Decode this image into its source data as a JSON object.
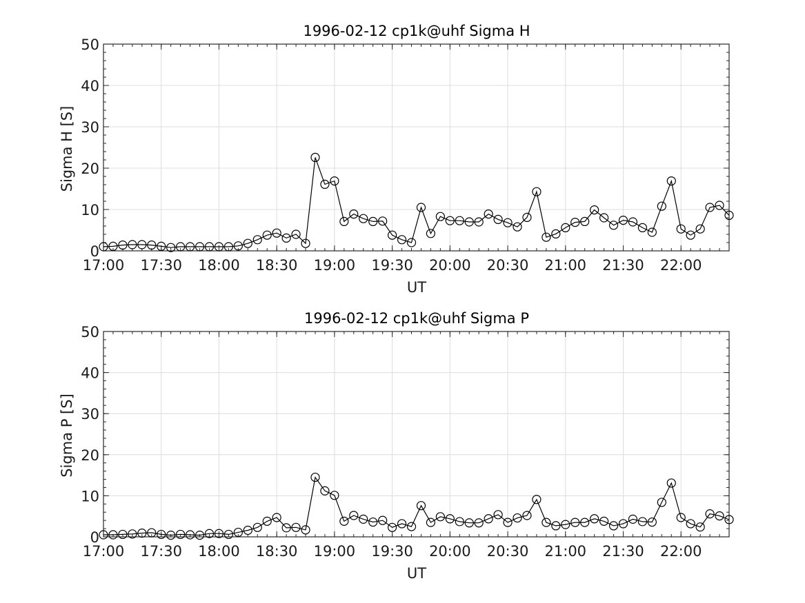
{
  "chart_data": [
    {
      "type": "line",
      "title": "1996-02-12  cp1k@uhf Sigma H",
      "xlabel": "UT",
      "ylabel": "Sigma H [S]",
      "xlim": [
        "17:00",
        "22:25"
      ],
      "ylim": [
        0,
        50
      ],
      "x_ticks": [
        "17:00",
        "17:30",
        "18:00",
        "18:30",
        "19:00",
        "19:30",
        "20:00",
        "20:30",
        "21:00",
        "21:30",
        "22:00"
      ],
      "y_ticks": [
        0,
        10,
        20,
        30,
        40,
        50
      ],
      "grid": true,
      "marker": "open-circle",
      "color": "#000000",
      "x": [
        "17:00",
        "17:05",
        "17:10",
        "17:15",
        "17:20",
        "17:25",
        "17:30",
        "17:35",
        "17:40",
        "17:45",
        "17:50",
        "17:55",
        "18:00",
        "18:05",
        "18:10",
        "18:15",
        "18:20",
        "18:25",
        "18:30",
        "18:35",
        "18:40",
        "18:45",
        "18:50",
        "18:55",
        "19:00",
        "19:05",
        "19:10",
        "19:15",
        "19:20",
        "19:25",
        "19:30",
        "19:35",
        "19:40",
        "19:45",
        "19:50",
        "19:55",
        "20:00",
        "20:05",
        "20:10",
        "20:15",
        "20:20",
        "20:25",
        "20:30",
        "20:35",
        "20:40",
        "20:45",
        "20:50",
        "20:55",
        "21:00",
        "21:05",
        "21:10",
        "21:15",
        "21:20",
        "21:25",
        "21:30",
        "21:35",
        "21:40",
        "21:45",
        "21:50",
        "21:55",
        "22:00",
        "22:05",
        "22:10",
        "22:15",
        "22:20",
        "22:25"
      ],
      "values": [
        1.0,
        1.1,
        1.4,
        1.5,
        1.5,
        1.4,
        1.1,
        0.8,
        1.0,
        1.0,
        1.0,
        1.0,
        1.0,
        1.0,
        1.2,
        1.8,
        2.7,
        3.8,
        4.3,
        3.1,
        4.0,
        1.8,
        22.6,
        16.1,
        16.9,
        7.1,
        8.9,
        7.8,
        7.1,
        7.2,
        3.8,
        2.7,
        2.0,
        10.5,
        4.2,
        8.3,
        7.3,
        7.3,
        7.0,
        7.0,
        8.9,
        7.6,
        6.8,
        5.8,
        8.1,
        14.3,
        3.3,
        4.1,
        5.6,
        6.9,
        7.1,
        9.9,
        8.0,
        6.2,
        7.4,
        7.0,
        5.6,
        4.5,
        10.8,
        16.9,
        5.3,
        3.8,
        5.3,
        10.5,
        11.0,
        8.6
      ]
    },
    {
      "type": "line",
      "title": "1996-02-12  cp1k@uhf Sigma P",
      "xlabel": "UT",
      "ylabel": "Sigma P [S]",
      "xlim": [
        "17:00",
        "22:25"
      ],
      "ylim": [
        0,
        50
      ],
      "x_ticks": [
        "17:00",
        "17:30",
        "18:00",
        "18:30",
        "19:00",
        "19:30",
        "20:00",
        "20:30",
        "21:00",
        "21:30",
        "22:00"
      ],
      "y_ticks": [
        0,
        10,
        20,
        30,
        40,
        50
      ],
      "grid": true,
      "marker": "open-circle",
      "color": "#000000",
      "x": [
        "17:00",
        "17:05",
        "17:10",
        "17:15",
        "17:20",
        "17:25",
        "17:30",
        "17:35",
        "17:40",
        "17:45",
        "17:50",
        "17:55",
        "18:00",
        "18:05",
        "18:10",
        "18:15",
        "18:20",
        "18:25",
        "18:30",
        "18:35",
        "18:40",
        "18:45",
        "18:50",
        "18:55",
        "19:00",
        "19:05",
        "19:10",
        "19:15",
        "19:20",
        "19:25",
        "19:30",
        "19:35",
        "19:40",
        "19:45",
        "19:50",
        "19:55",
        "20:00",
        "20:05",
        "20:10",
        "20:15",
        "20:20",
        "20:25",
        "20:30",
        "20:35",
        "20:40",
        "20:45",
        "20:50",
        "20:55",
        "21:00",
        "21:05",
        "21:10",
        "21:15",
        "21:20",
        "21:25",
        "21:30",
        "21:35",
        "21:40",
        "21:45",
        "21:50",
        "21:55",
        "22:00",
        "22:05",
        "22:10",
        "22:15",
        "22:20",
        "22:25"
      ],
      "values": [
        0.5,
        0.5,
        0.6,
        0.7,
        0.9,
        1.0,
        0.6,
        0.4,
        0.6,
        0.5,
        0.4,
        0.8,
        0.8,
        0.6,
        1.1,
        1.6,
        2.3,
        3.8,
        4.7,
        2.2,
        2.3,
        1.7,
        14.5,
        11.2,
        10.1,
        3.8,
        5.2,
        4.3,
        3.6,
        4.0,
        2.3,
        3.2,
        2.5,
        7.6,
        3.5,
        4.9,
        4.4,
        3.7,
        3.4,
        3.4,
        4.4,
        5.4,
        3.5,
        4.6,
        5.2,
        9.1,
        3.5,
        2.7,
        3.0,
        3.5,
        3.5,
        4.4,
        3.8,
        2.7,
        3.2,
        4.3,
        3.7,
        3.6,
        8.4,
        13.1,
        4.7,
        3.2,
        2.4,
        5.6,
        5.1,
        4.2
      ]
    }
  ]
}
